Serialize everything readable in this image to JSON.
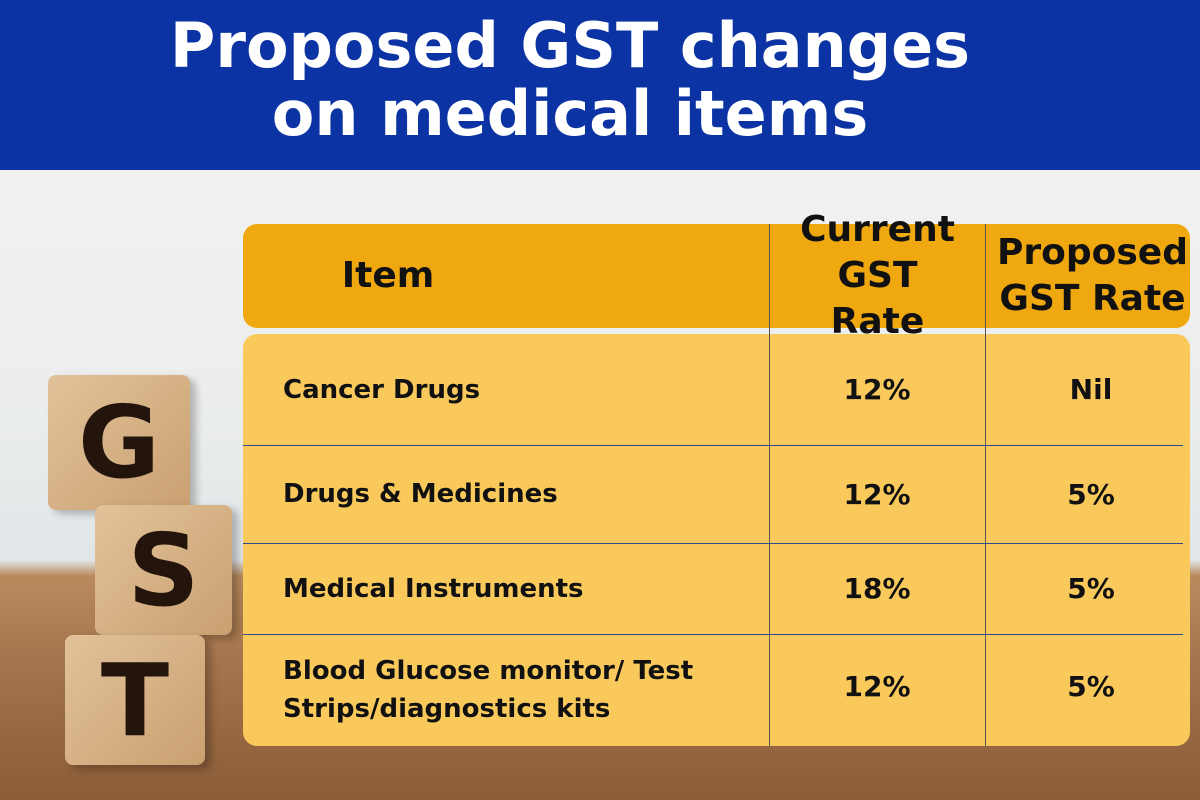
{
  "title_lines": [
    "Proposed GST changes",
    "on medical items"
  ],
  "blocks": [
    "G",
    "S",
    "T"
  ],
  "table": {
    "headers": [
      "Item",
      "Current GST Rate",
      "Proposed GST Rate"
    ],
    "rows": [
      {
        "item": "Cancer Drugs",
        "current": "12%",
        "proposed": "Nil"
      },
      {
        "item": "Drugs & Medicines",
        "current": "12%",
        "proposed": "5%"
      },
      {
        "item": "Medical Instruments",
        "current": "18%",
        "proposed": "5%"
      },
      {
        "item": "Blood Glucose monitor/ Test Strips/diagnostics kits",
        "current": "12%",
        "proposed": "5%"
      }
    ]
  },
  "colors": {
    "banner": "#0b33a3",
    "header": "#f0a810",
    "body": "#f9c95c"
  }
}
